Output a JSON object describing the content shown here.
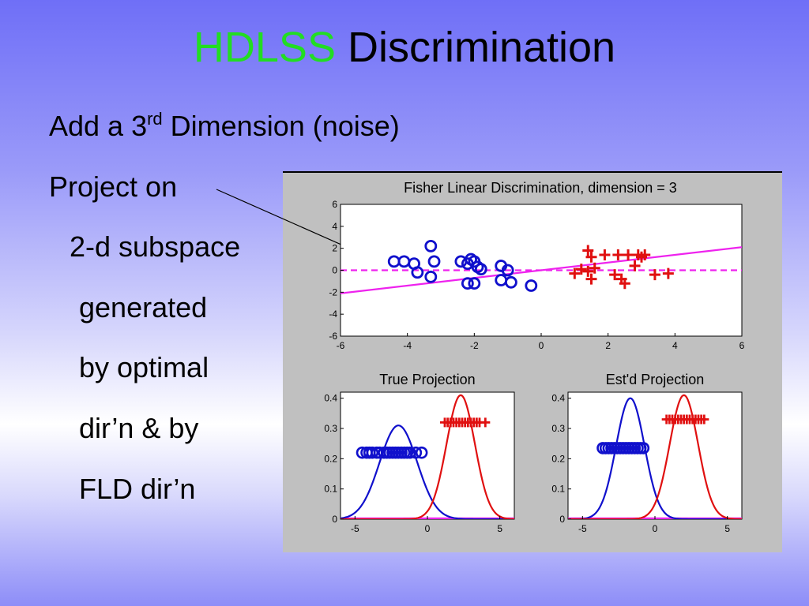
{
  "slide": {
    "title_highlight": "HDLSS",
    "title_rest": "Discrimination",
    "line1_pre": "Add a 3",
    "line1_sup": "rd",
    "line1_post": " Dimension (noise)",
    "line2": "Project on",
    "line3": "2-d subspace",
    "line4": "generated",
    "line5": "by optimal",
    "line6": "dir’n & by",
    "line7": "FLD dir’n",
    "colors": {
      "highlight": "#22dd22",
      "background_top": "#6f6ff7",
      "background_mid": "#ffffff"
    }
  },
  "chart_data": [
    {
      "type": "scatter",
      "title": "Fisher Linear Discrimination, dimension = 3",
      "xlim": [
        -6,
        6
      ],
      "ylim": [
        -6,
        6
      ],
      "xticks": [
        -6,
        -4,
        -2,
        0,
        2,
        4,
        6
      ],
      "yticks": [
        -6,
        -4,
        -2,
        0,
        2,
        4,
        6
      ],
      "series": [
        {
          "marker": "circle",
          "color": "#1010cc",
          "points": [
            [
              -4.4,
              0.8
            ],
            [
              -4.1,
              0.8
            ],
            [
              -3.8,
              0.6
            ],
            [
              -3.7,
              -0.2
            ],
            [
              -3.3,
              2.2
            ],
            [
              -3.2,
              0.8
            ],
            [
              -3.3,
              -0.6
            ],
            [
              -2.4,
              0.8
            ],
            [
              -2.2,
              0.6
            ],
            [
              -2.1,
              1.0
            ],
            [
              -2.0,
              0.8
            ],
            [
              -1.9,
              0.3
            ],
            [
              -1.8,
              0.1
            ],
            [
              -2.2,
              -1.2
            ],
            [
              -2.0,
              -1.2
            ],
            [
              -1.2,
              0.4
            ],
            [
              -1.0,
              0.0
            ],
            [
              -1.2,
              -0.9
            ],
            [
              -0.9,
              -1.1
            ],
            [
              -0.3,
              -1.4
            ]
          ]
        },
        {
          "marker": "plus",
          "color": "#e01010",
          "points": [
            [
              1.4,
              1.8
            ],
            [
              1.5,
              1.2
            ],
            [
              1.9,
              1.4
            ],
            [
              2.3,
              1.4
            ],
            [
              2.6,
              1.4
            ],
            [
              2.9,
              1.4
            ],
            [
              3.0,
              1.2
            ],
            [
              3.1,
              1.4
            ],
            [
              1.0,
              -0.3
            ],
            [
              1.2,
              0.1
            ],
            [
              1.4,
              -0.1
            ],
            [
              1.6,
              0.2
            ],
            [
              1.5,
              -0.8
            ],
            [
              2.2,
              -0.4
            ],
            [
              2.4,
              -0.8
            ],
            [
              2.5,
              -1.2
            ],
            [
              2.8,
              0.4
            ],
            [
              3.4,
              -0.4
            ],
            [
              3.8,
              -0.3
            ]
          ]
        }
      ],
      "lines": [
        {
          "name": "optimal direction",
          "style": "solid",
          "color": "#ee22ee",
          "x": [
            -6,
            6
          ],
          "y": [
            -2.1,
            2.1
          ]
        },
        {
          "name": "FLD direction",
          "style": "dashed",
          "color": "#ee22ee",
          "x": [
            -6,
            6
          ],
          "y": [
            0,
            0
          ]
        }
      ]
    },
    {
      "type": "line",
      "title": "True Projection",
      "xlim": [
        -6,
        6
      ],
      "ylim": [
        0,
        0.42
      ],
      "xticks": [
        -5,
        0,
        5
      ],
      "yticks": [
        0,
        0.1,
        0.2,
        0.3,
        0.4
      ],
      "series": [
        {
          "color": "#1010cc",
          "kind": "density",
          "mean": -2.0,
          "sd": 1.3,
          "peak": 0.31
        },
        {
          "color": "#e01010",
          "kind": "density",
          "mean": 2.3,
          "sd": 0.98,
          "peak": 0.41
        }
      ],
      "points": [
        {
          "marker": "circle",
          "color": "#1010cc",
          "y": 0.22,
          "x": [
            -4.5,
            -4.2,
            -4.0,
            -3.8,
            -3.5,
            -3.3,
            -3.0,
            -2.8,
            -2.6,
            -2.4,
            -2.2,
            -2.0,
            -1.8,
            -1.6,
            -1.4,
            -1.2,
            -0.8,
            -0.4
          ]
        },
        {
          "marker": "plus",
          "color": "#e01010",
          "y": 0.32,
          "x": [
            1.2,
            1.4,
            1.6,
            1.8,
            2.0,
            2.2,
            2.4,
            2.6,
            2.8,
            3.0,
            3.2,
            3.4,
            3.6,
            4.0
          ]
        }
      ],
      "baseline": {
        "color": "#ee22ee",
        "y": 0
      }
    },
    {
      "type": "line",
      "title": "Est'd Projection",
      "xlim": [
        -6,
        6
      ],
      "ylim": [
        0,
        0.42
      ],
      "xticks": [
        -5,
        0,
        5
      ],
      "yticks": [
        0,
        0.1,
        0.2,
        0.3,
        0.4
      ],
      "series": [
        {
          "color": "#1010cc",
          "kind": "density",
          "mean": -1.7,
          "sd": 0.98,
          "peak": 0.4
        },
        {
          "color": "#e01010",
          "kind": "density",
          "mean": 2.0,
          "sd": 0.98,
          "peak": 0.41
        }
      ],
      "points": [
        {
          "marker": "circle",
          "color": "#1010cc",
          "y": 0.235,
          "x": [
            -3.6,
            -3.4,
            -3.2,
            -3.0,
            -2.8,
            -2.6,
            -2.4,
            -2.2,
            -2.0,
            -1.8,
            -1.6,
            -1.4,
            -1.2,
            -1.0,
            -0.8
          ]
        },
        {
          "marker": "plus",
          "color": "#e01010",
          "y": 0.33,
          "x": [
            0.8,
            1.0,
            1.2,
            1.4,
            1.6,
            1.8,
            2.0,
            2.2,
            2.4,
            2.6,
            2.8,
            3.0,
            3.2,
            3.4
          ]
        }
      ],
      "baseline": {
        "color": "#ee22ee",
        "y": 0
      }
    }
  ]
}
